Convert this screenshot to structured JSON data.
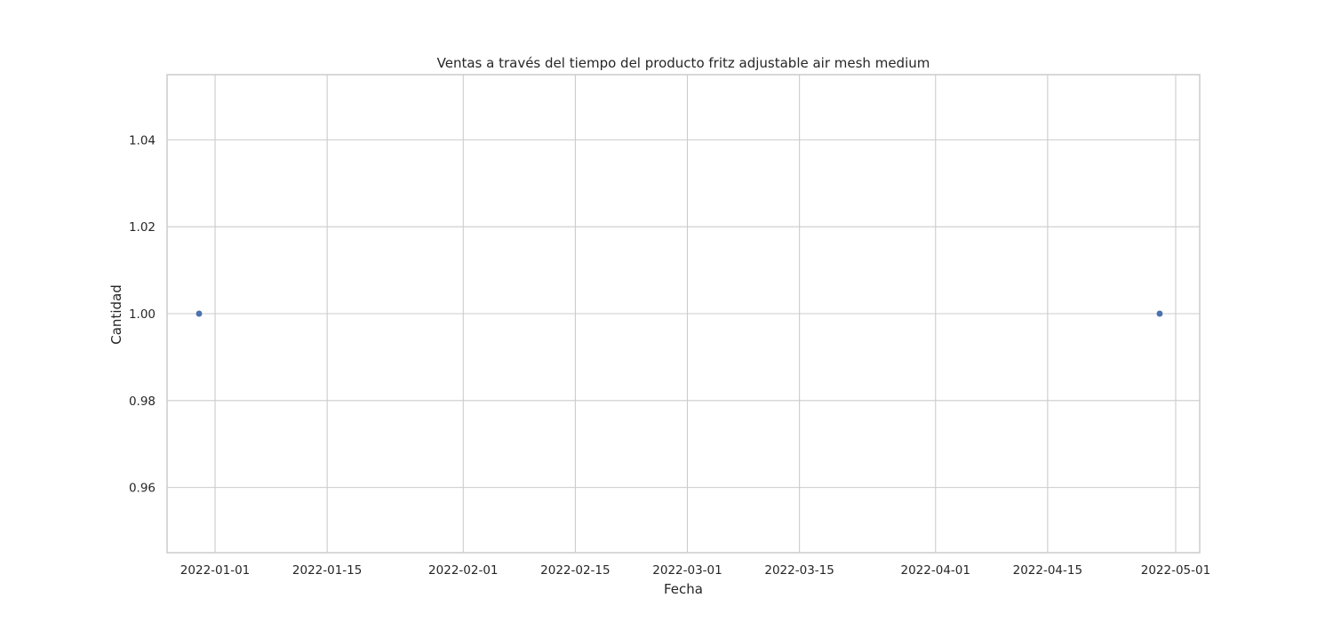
{
  "chart_data": {
    "type": "scatter",
    "title": "Ventas a través del tiempo del producto fritz adjustable air mesh medium",
    "xlabel": "Fecha",
    "ylabel": "Cantidad",
    "x_ticks": [
      "2022-01-01",
      "2022-01-15",
      "2022-02-01",
      "2022-02-15",
      "2022-03-01",
      "2022-03-15",
      "2022-04-01",
      "2022-04-15",
      "2022-05-01"
    ],
    "y_ticks": [
      "0.96",
      "0.98",
      "1.00",
      "1.02",
      "1.04"
    ],
    "xlim": [
      "2021-12-26",
      "2022-05-04"
    ],
    "ylim": [
      0.945,
      1.055
    ],
    "grid": true,
    "point_color": "#4c72b0",
    "series": [
      {
        "x": [
          "2021-12-30",
          "2022-04-29"
        ],
        "values": [
          1,
          1
        ]
      }
    ]
  }
}
